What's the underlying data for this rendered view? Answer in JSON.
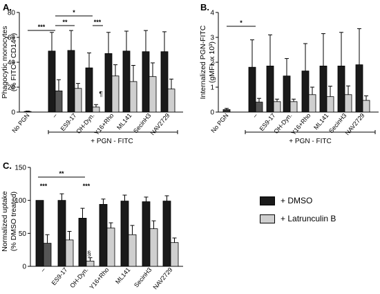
{
  "legend": {
    "items": [
      {
        "label": "+ DMSO",
        "color": "#1a1a1a"
      },
      {
        "label": "+ Latrunculin B",
        "color": "#cfcfcf"
      }
    ]
  },
  "chart_data": [
    {
      "panel": "A.",
      "type": "bar",
      "ylabel": [
        "Phagocytic monocytes",
        "(% FITC+ CD14+)"
      ],
      "ylim": [
        0,
        80
      ],
      "yticks": [
        0,
        20,
        40,
        60,
        80
      ],
      "categories": [
        "No PGN",
        "–",
        "ES9-17",
        "OH-Dyn.",
        "Y16+Rho",
        "ML141",
        "SecinH3",
        "NAV2729"
      ],
      "bracket_label": "+ PGN - FITC",
      "series": [
        {
          "values": [
            0.5,
            49,
            49.5,
            35.5,
            47,
            49,
            48.5,
            48.5
          ],
          "errors": [
            0.3,
            15,
            16,
            12,
            17,
            16,
            17,
            16
          ]
        },
        {
          "values": [
            null,
            17,
            19,
            4,
            29,
            24.5,
            28.5,
            18.5
          ],
          "errors": [
            null,
            9,
            4,
            2,
            9,
            13,
            11,
            8
          ]
        }
      ],
      "annotations": [
        "***",
        "**",
        "*",
        "***",
        "¶"
      ]
    },
    {
      "panel": "B.",
      "type": "bar",
      "ylabel": [
        "Internalized PGN-FITC",
        "(gMFI, x 10³)"
      ],
      "ylim": [
        0,
        4
      ],
      "yticks": [
        0,
        1,
        2,
        3,
        4
      ],
      "categories": [
        "No PGN",
        "–",
        "ES9-17",
        "OH-Dyn.",
        "Y16+Rho",
        "ML141",
        "SecinH3",
        "NAV2729"
      ],
      "bracket_label": "+ PGN - FITC",
      "series": [
        {
          "values": [
            0.1,
            1.8,
            1.85,
            1.45,
            1.65,
            1.85,
            1.85,
            1.9
          ],
          "errors": [
            0.05,
            1.1,
            1.25,
            0.7,
            1.1,
            1.3,
            1.35,
            1.45
          ]
        },
        {
          "values": [
            null,
            0.4,
            0.42,
            0.42,
            0.7,
            0.62,
            0.7,
            0.47
          ],
          "errors": [
            null,
            0.15,
            0.1,
            0.1,
            0.3,
            0.42,
            0.35,
            0.18
          ]
        }
      ],
      "annotations": [
        "*"
      ]
    },
    {
      "panel": "C.",
      "type": "bar",
      "ylabel": [
        "Normalized uptake",
        "(% DMSO treated)"
      ],
      "ylim": [
        0,
        150
      ],
      "yticks": [
        0,
        50,
        100,
        150
      ],
      "categories": [
        "–",
        "ES9-17",
        "OH-Dyn.",
        "Y16+Rho",
        "ML141",
        "SecinH3",
        "NAV2729"
      ],
      "series": [
        {
          "name": "+ DMSO",
          "values": [
            100,
            100,
            73,
            94,
            99,
            98,
            99
          ],
          "errors": [
            0,
            10,
            15,
            8,
            9,
            7,
            8
          ]
        },
        {
          "name": "+ Latrunculin B",
          "values": [
            35,
            40,
            8,
            58,
            48,
            57,
            36
          ],
          "errors": [
            13,
            13,
            5,
            8,
            14,
            12,
            7
          ]
        }
      ],
      "annotations": [
        "***",
        "**",
        "***",
        "§"
      ]
    }
  ]
}
